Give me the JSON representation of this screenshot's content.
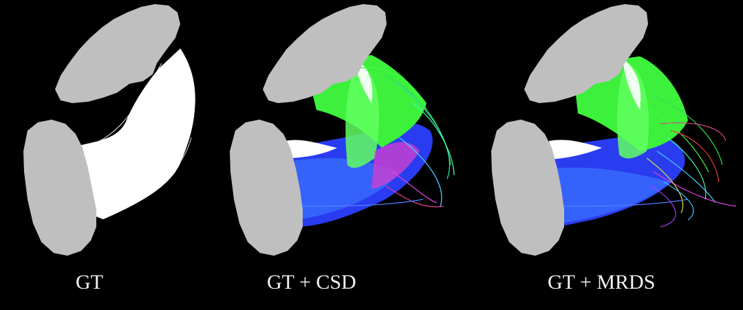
{
  "panels": [
    {
      "id": "gt",
      "caption": "GT"
    },
    {
      "id": "csd",
      "caption": "GT + CSD"
    },
    {
      "id": "mrds",
      "caption": "GT + MRDS"
    }
  ],
  "colors": {
    "background": "#000000",
    "region": "#bfbfbf",
    "bundle_gt": "#ffffff",
    "fiber_green": "#3cff3c",
    "fiber_blue": "#3a48ff",
    "fiber_magenta": "#e040e0",
    "fiber_cyan": "#40d0ff",
    "fiber_white": "#ffffff"
  }
}
